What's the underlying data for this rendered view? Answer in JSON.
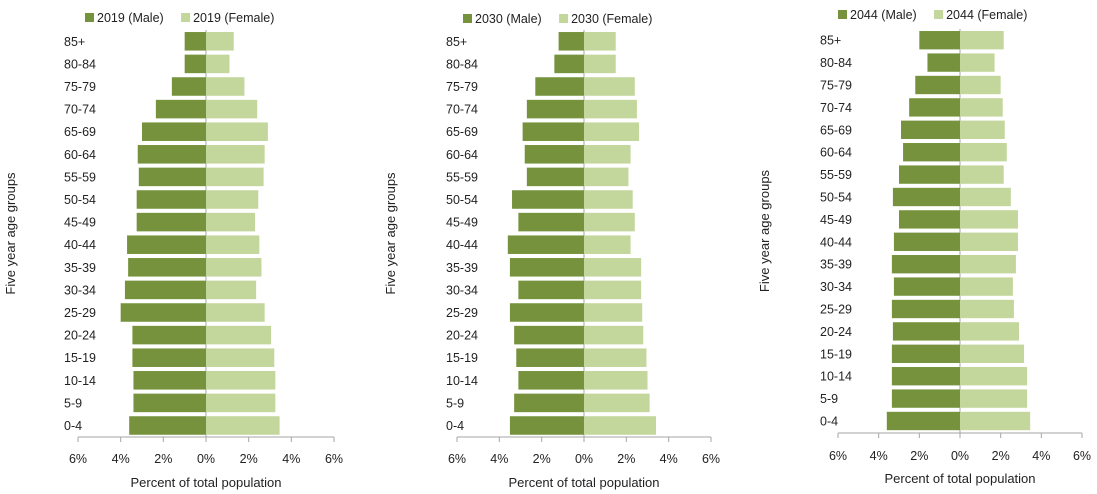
{
  "colors": {
    "male": "#76923c",
    "female": "#c3d69b",
    "axis": "#a6a6a6"
  },
  "chart_data": [
    {
      "type": "bar",
      "orientation": "horizontal-population-pyramid",
      "ylabel": "Five year age groups",
      "xlabel": "Percent of total population",
      "xlim": [
        -6,
        6
      ],
      "xticks": [
        "6%",
        "4%",
        "2%",
        "0%",
        "2%",
        "4%",
        "6%"
      ],
      "categories": [
        "85+",
        "80-84",
        "75-79",
        "70-74",
        "65-69",
        "60-64",
        "55-59",
        "50-54",
        "45-49",
        "40-44",
        "35-39",
        "30-34",
        "25-29",
        "20-24",
        "15-19",
        "10-14",
        "5-9",
        "0-4"
      ],
      "legend_position": "top",
      "series": [
        {
          "name": "2019 (Male)",
          "values": [
            1.0,
            1.0,
            1.6,
            2.35,
            3.0,
            3.2,
            3.15,
            3.25,
            3.25,
            3.7,
            3.65,
            3.8,
            4.0,
            3.45,
            3.45,
            3.4,
            3.4,
            3.6
          ]
        },
        {
          "name": "2019 (Female)",
          "values": [
            1.3,
            1.1,
            1.8,
            2.4,
            2.9,
            2.75,
            2.7,
            2.45,
            2.3,
            2.5,
            2.6,
            2.35,
            2.75,
            3.05,
            3.2,
            3.25,
            3.25,
            3.45
          ]
        }
      ]
    },
    {
      "type": "bar",
      "orientation": "horizontal-population-pyramid",
      "ylabel": "Five year age groups",
      "xlabel": "Percent of total population",
      "xlim": [
        -6,
        6
      ],
      "xticks": [
        "6%",
        "4%",
        "2%",
        "0%",
        "2%",
        "4%",
        "6%"
      ],
      "categories": [
        "85+",
        "80-84",
        "75-79",
        "70-74",
        "65-69",
        "60-64",
        "55-59",
        "50-54",
        "45-49",
        "40-44",
        "35-39",
        "30-34",
        "25-29",
        "20-24",
        "15-19",
        "10-14",
        "5-9",
        "0-4"
      ],
      "legend_position": "top",
      "series": [
        {
          "name": "2030 (Male)",
          "values": [
            1.2,
            1.4,
            2.3,
            2.7,
            2.9,
            2.8,
            2.7,
            3.4,
            3.1,
            3.6,
            3.5,
            3.1,
            3.5,
            3.3,
            3.2,
            3.1,
            3.3,
            3.5
          ]
        },
        {
          "name": "2030 (Female)",
          "values": [
            1.5,
            1.5,
            2.4,
            2.5,
            2.6,
            2.2,
            2.1,
            2.3,
            2.4,
            2.2,
            2.7,
            2.7,
            2.75,
            2.8,
            2.95,
            3.0,
            3.1,
            3.4
          ]
        }
      ]
    },
    {
      "type": "bar",
      "orientation": "horizontal-population-pyramid",
      "ylabel": "Five year age groups",
      "xlabel": "Percent of total population",
      "xlim": [
        -6,
        6
      ],
      "xticks": [
        "6%",
        "4%",
        "2%",
        "0%",
        "2%",
        "4%",
        "6%"
      ],
      "categories": [
        "85+",
        "80-84",
        "75-79",
        "70-74",
        "65-69",
        "60-64",
        "55-59",
        "50-54",
        "45-49",
        "40-44",
        "35-39",
        "30-34",
        "25-29",
        "20-24",
        "15-19",
        "10-14",
        "5-9",
        "0-4"
      ],
      "legend_position": "top",
      "series": [
        {
          "name": "2044 (Male)",
          "values": [
            2.0,
            1.6,
            2.2,
            2.5,
            2.9,
            2.8,
            3.0,
            3.3,
            3.0,
            3.25,
            3.35,
            3.25,
            3.35,
            3.3,
            3.35,
            3.35,
            3.35,
            3.6
          ]
        },
        {
          "name": "2044 (Female)",
          "values": [
            2.15,
            1.7,
            2.0,
            2.1,
            2.2,
            2.3,
            2.15,
            2.5,
            2.85,
            2.85,
            2.75,
            2.6,
            2.65,
            2.9,
            3.15,
            3.3,
            3.3,
            3.45
          ]
        }
      ]
    }
  ]
}
